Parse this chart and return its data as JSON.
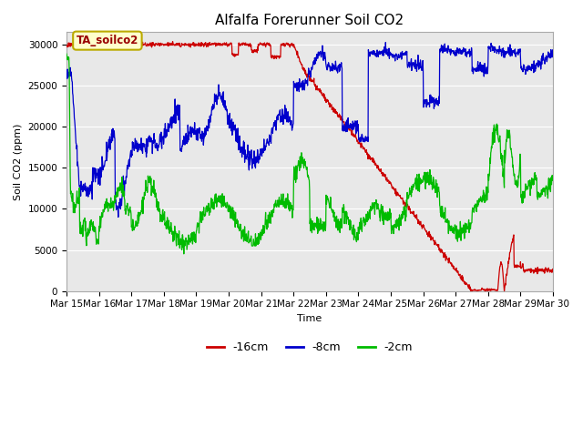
{
  "title": "Alfalfa Forerunner Soil CO2",
  "ylabel": "Soil CO2 (ppm)",
  "xlabel": "Time",
  "ylim": [
    0,
    31500
  ],
  "fig_color": "#ffffff",
  "plot_bg_color": "#e8e8e8",
  "legend_label": "TA_soilco2",
  "red_color": "#cc0000",
  "blue_color": "#0000cc",
  "green_color": "#00bb00",
  "red_label": "-16cm",
  "blue_label": "-8cm",
  "green_label": "-2cm",
  "x_tick_labels": [
    "Mar 15",
    "Mar 16",
    "Mar 17",
    "Mar 18",
    "Mar 19",
    "Mar 20",
    "Mar 21",
    "Mar 22",
    "Mar 23",
    "Mar 24",
    "Mar 25",
    "Mar 26",
    "Mar 27",
    "Mar 28",
    "Mar 29",
    "Mar 30"
  ],
  "yticks": [
    0,
    5000,
    10000,
    15000,
    20000,
    25000,
    30000
  ],
  "grid_color": "#ffffff",
  "title_fontsize": 11,
  "label_fontsize": 8,
  "tick_fontsize": 7.5
}
